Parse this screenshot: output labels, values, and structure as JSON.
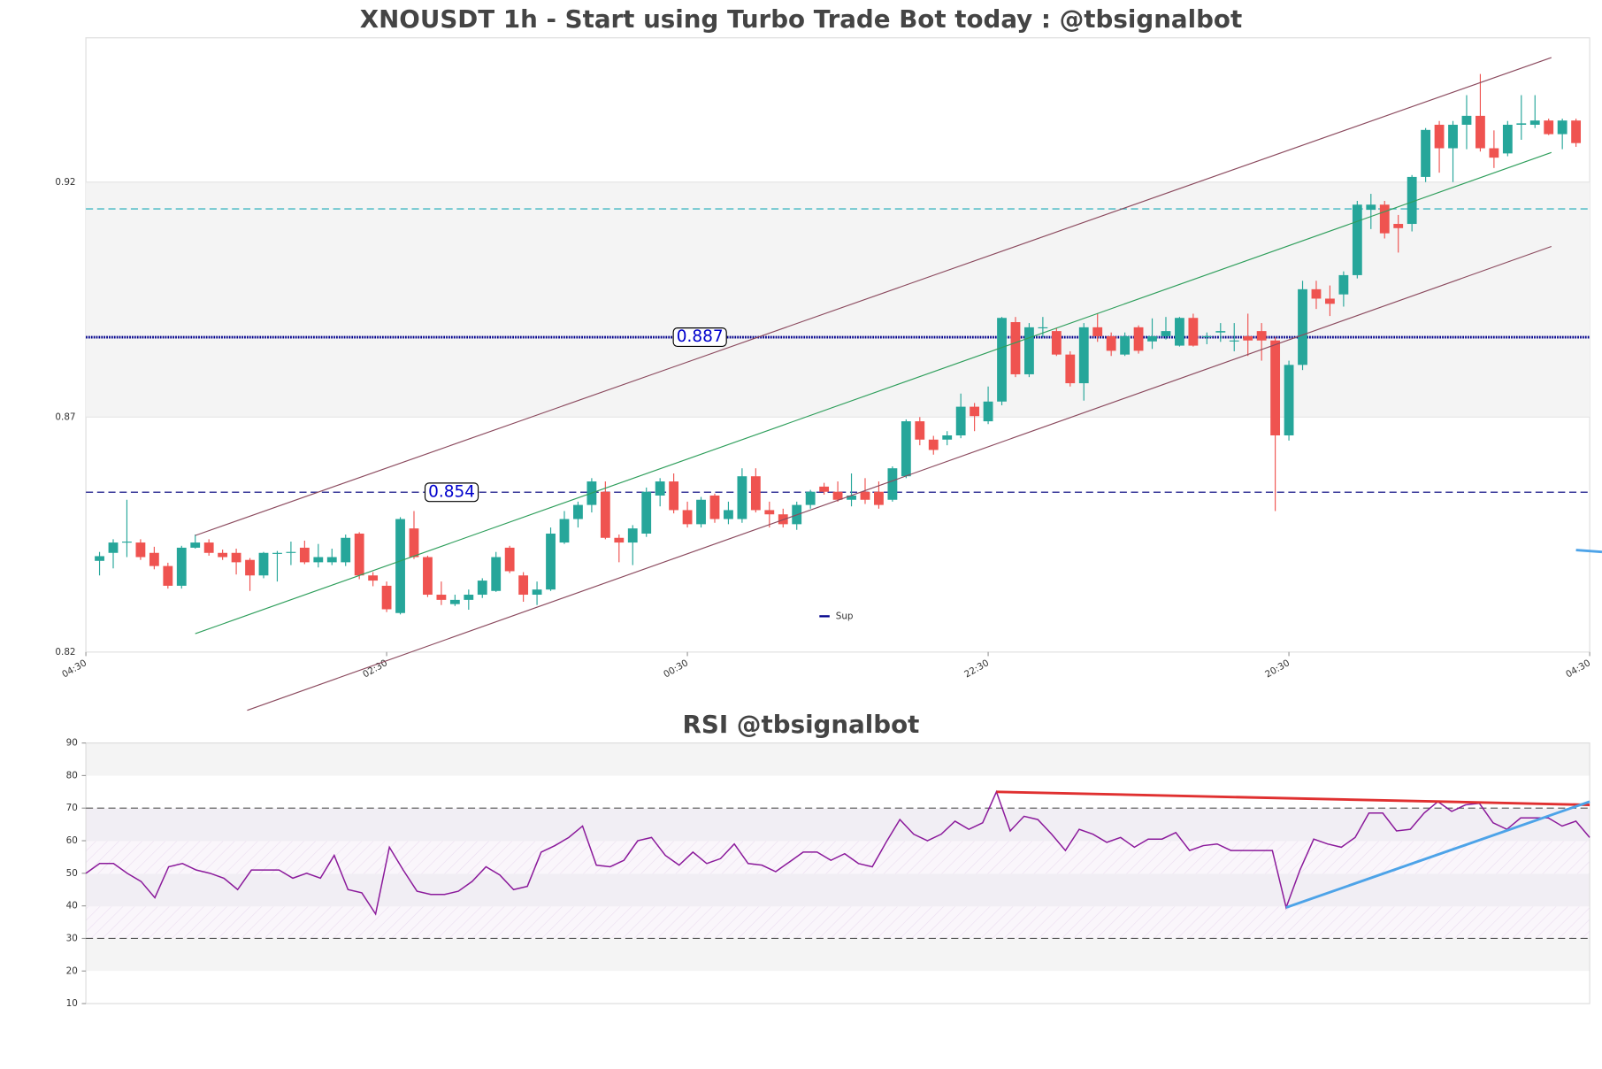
{
  "chart_data": [
    {
      "type": "candlestick",
      "title": "XNOUSDT 1h - Start using Turbo Trade Bot today : @tbsignalbot",
      "up_color": "#26a69a",
      "down_color": "#ef5350",
      "open": [
        0.8394,
        0.8411,
        0.8433,
        0.8433,
        0.8411,
        0.8383,
        0.8341,
        0.8422,
        0.8433,
        0.8411,
        0.8411,
        0.8396,
        0.8363,
        0.8411,
        0.8411,
        0.8422,
        0.8391,
        0.8391,
        0.8391,
        0.8452,
        0.8363,
        0.8341,
        0.8283,
        0.8463,
        0.8402,
        0.8322,
        0.8302,
        0.8311,
        0.8322,
        0.833,
        0.8422,
        0.8363,
        0.8322,
        0.8333,
        0.8433,
        0.8483,
        0.8513,
        0.8541,
        0.8443,
        0.8433,
        0.8452,
        0.8533,
        0.8563,
        0.8502,
        0.8472,
        0.8533,
        0.8483,
        0.8483,
        0.8574,
        0.8502,
        0.8493,
        0.8472,
        0.8513,
        0.8552,
        0.8541,
        0.8524,
        0.8541,
        0.8541,
        0.8524,
        0.8574,
        0.8691,
        0.8652,
        0.8652,
        0.8661,
        0.8722,
        0.8691,
        0.8733,
        0.8902,
        0.8791,
        0.8891,
        0.8883,
        0.8833,
        0.8772,
        0.8891,
        0.8872,
        0.8833,
        0.8891,
        0.8861,
        0.8872,
        0.8852,
        0.8911,
        0.8872,
        0.888,
        0.8861,
        0.8872,
        0.8883,
        0.8863,
        0.8661,
        0.8811,
        0.8972,
        0.8952,
        0.8961,
        0.9002,
        0.9141,
        0.9152,
        0.9111,
        0.9111,
        0.9211,
        0.9322,
        0.9272,
        0.9322,
        0.9341,
        0.9272,
        0.9261,
        0.9322,
        0.9322,
        0.9331,
        0.9302,
        0.9331
      ],
      "high": [
        0.8413,
        0.844,
        0.8524,
        0.844,
        0.8424,
        0.839,
        0.8426,
        0.845,
        0.844,
        0.8418,
        0.842,
        0.84,
        0.8413,
        0.8415,
        0.8435,
        0.8437,
        0.843,
        0.842,
        0.845,
        0.8455,
        0.837,
        0.835,
        0.8487,
        0.85,
        0.8405,
        0.835,
        0.8322,
        0.8333,
        0.8357,
        0.8413,
        0.8426,
        0.837,
        0.835,
        0.8465,
        0.85,
        0.852,
        0.857,
        0.8563,
        0.845,
        0.847,
        0.855,
        0.857,
        0.858,
        0.852,
        0.853,
        0.8537,
        0.852,
        0.8591,
        0.8591,
        0.852,
        0.8505,
        0.852,
        0.8545,
        0.856,
        0.8563,
        0.858,
        0.857,
        0.8563,
        0.8595,
        0.8695,
        0.87,
        0.866,
        0.867,
        0.875,
        0.873,
        0.8765,
        0.8913,
        0.8913,
        0.89,
        0.8913,
        0.889,
        0.884,
        0.89,
        0.892,
        0.888,
        0.888,
        0.8895,
        0.891,
        0.8913,
        0.8913,
        0.892,
        0.888,
        0.89,
        0.89,
        0.892,
        0.89,
        0.887,
        0.882,
        0.899,
        0.899,
        0.898,
        0.901,
        0.916,
        0.9175,
        0.916,
        0.913,
        0.9215,
        0.9315,
        0.933,
        0.933,
        0.9385,
        0.943,
        0.931,
        0.933,
        0.9385,
        0.9385,
        0.9335,
        0.9335,
        0.9335
      ],
      "low": [
        0.8363,
        0.8378,
        0.8402,
        0.8396,
        0.8376,
        0.8335,
        0.8335,
        0.842,
        0.8405,
        0.8396,
        0.8365,
        0.833,
        0.8357,
        0.835,
        0.8385,
        0.8387,
        0.838,
        0.8385,
        0.8383,
        0.8355,
        0.834,
        0.8285,
        0.828,
        0.8398,
        0.8317,
        0.83,
        0.8298,
        0.829,
        0.8315,
        0.8328,
        0.8368,
        0.8307,
        0.83,
        0.833,
        0.843,
        0.8465,
        0.8497,
        0.844,
        0.8391,
        0.8385,
        0.8445,
        0.851,
        0.8495,
        0.8465,
        0.8465,
        0.8475,
        0.8472,
        0.8475,
        0.8497,
        0.8465,
        0.8465,
        0.846,
        0.8505,
        0.8535,
        0.852,
        0.851,
        0.8515,
        0.8505,
        0.852,
        0.857,
        0.864,
        0.862,
        0.864,
        0.8655,
        0.867,
        0.8685,
        0.8725,
        0.8785,
        0.8785,
        0.887,
        0.883,
        0.8765,
        0.8735,
        0.886,
        0.883,
        0.883,
        0.8835,
        0.8845,
        0.8865,
        0.885,
        0.885,
        0.8855,
        0.886,
        0.884,
        0.883,
        0.882,
        0.85,
        0.865,
        0.88,
        0.893,
        0.8915,
        0.8935,
        0.8995,
        0.91,
        0.908,
        0.905,
        0.9095,
        0.92,
        0.922,
        0.92,
        0.927,
        0.9265,
        0.923,
        0.9255,
        0.929,
        0.9315,
        0.93,
        0.927,
        0.9275
      ],
      "close": [
        0.8404,
        0.8433,
        0.8435,
        0.8402,
        0.8383,
        0.8341,
        0.8422,
        0.8433,
        0.8411,
        0.8402,
        0.8391,
        0.8363,
        0.8411,
        0.8411,
        0.8413,
        0.8391,
        0.8402,
        0.8402,
        0.8443,
        0.8363,
        0.8352,
        0.8291,
        0.8483,
        0.8402,
        0.8322,
        0.8311,
        0.8311,
        0.8322,
        0.8352,
        0.8402,
        0.8372,
        0.8322,
        0.8333,
        0.8452,
        0.8483,
        0.8513,
        0.8563,
        0.8443,
        0.8433,
        0.8463,
        0.8541,
        0.8563,
        0.8502,
        0.8472,
        0.8524,
        0.8483,
        0.8502,
        0.8574,
        0.8502,
        0.8493,
        0.8472,
        0.8513,
        0.8541,
        0.8541,
        0.8524,
        0.8533,
        0.8524,
        0.8513,
        0.8591,
        0.8691,
        0.8652,
        0.863,
        0.8661,
        0.8722,
        0.8702,
        0.8733,
        0.8911,
        0.8791,
        0.8891,
        0.8891,
        0.8833,
        0.8772,
        0.8891,
        0.8872,
        0.8841,
        0.8872,
        0.8841,
        0.8872,
        0.8883,
        0.8911,
        0.8852,
        0.8872,
        0.8883,
        0.8863,
        0.8863,
        0.8863,
        0.8661,
        0.8811,
        0.8972,
        0.8952,
        0.8941,
        0.9002,
        0.9152,
        0.9152,
        0.9091,
        0.9102,
        0.9211,
        0.9311,
        0.9272,
        0.9322,
        0.9341,
        0.9272,
        0.9252,
        0.9322,
        0.9325,
        0.9331,
        0.9302,
        0.9331,
        0.9283
      ],
      "xlim": [
        -1,
        109
      ],
      "xticks": [
        {
          "value": -1,
          "label": "04:30"
        },
        {
          "value": 21,
          "label": "02:30"
        },
        {
          "value": 43,
          "label": "00:30"
        },
        {
          "value": 65,
          "label": "22:30"
        },
        {
          "value": 87,
          "label": "20:30"
        },
        {
          "value": 109,
          "label": "04:30"
        }
      ],
      "ylim": [
        0.82,
        0.9507
      ],
      "yticks": [
        0.82,
        0.87,
        0.92
      ],
      "hlines": [
        {
          "value": 0.887,
          "label": "0.887",
          "color": "#00008b",
          "style": "dotted"
        },
        {
          "value": 0.854,
          "label": "0.854",
          "color": "#3a3a9a",
          "style": "dashed"
        },
        {
          "value": 0.9143,
          "color": "#3fb6c2",
          "style": "dashed"
        }
      ],
      "trendlines": [
        {
          "x": [
            7,
            106.2
          ],
          "y": [
            0.8448,
            0.9465
          ],
          "color": "#8b4a5e"
        },
        {
          "x": [
            7,
            106.2
          ],
          "y": [
            0.8239,
            0.9263
          ],
          "color": "#2e9e5b"
        },
        {
          "x": [
            10.8,
            106.2
          ],
          "y": [
            0.8076,
            0.9063
          ],
          "color": "#8b4a5e"
        },
        {
          "x": [
            108,
            109.9
          ],
          "y": [
            0.8417,
            0.8413
          ],
          "color": "#4da3e8"
        }
      ],
      "legend": {
        "name": "Sup",
        "color": "#00008b",
        "position": "lower center"
      }
    },
    {
      "type": "line",
      "title": "RSI @tbsignalbot",
      "color": "#8b1a9b",
      "values": [
        50,
        53,
        53,
        50,
        47.5,
        42.5,
        52,
        53,
        51,
        50,
        48.5,
        45,
        51,
        51,
        51,
        48.5,
        50,
        48.5,
        55.5,
        45,
        44,
        37.5,
        58,
        51,
        44.5,
        43.5,
        43.5,
        44.5,
        47.5,
        52,
        49.5,
        45,
        46,
        56.5,
        58.5,
        61,
        64.5,
        52.5,
        52,
        54,
        60,
        61,
        55.5,
        52.5,
        56.5,
        53,
        54.5,
        59,
        53,
        52.5,
        50.5,
        53.5,
        56.5,
        56.5,
        54,
        56,
        53,
        52,
        59.5,
        66.5,
        62,
        60,
        62,
        66,
        63.5,
        65.5,
        75,
        63,
        67.5,
        66.5,
        62,
        57,
        63.5,
        62,
        59.5,
        61,
        58,
        60.5,
        60.5,
        62.5,
        57,
        58.5,
        59,
        57,
        57,
        57,
        57,
        39.5,
        51,
        60.5,
        59,
        58,
        61,
        68.5,
        68.5,
        63,
        63.5,
        68.5,
        72,
        69,
        71,
        71.5,
        65.5,
        63.5,
        67,
        67,
        67,
        64.5,
        66,
        61
      ],
      "ylim": [
        10,
        90
      ],
      "yticks": [
        10,
        20,
        30,
        40,
        50,
        60,
        70,
        80,
        90
      ],
      "hlines": [
        {
          "value": 70,
          "color": "#555",
          "style": "dashed"
        },
        {
          "value": 30,
          "color": "#555",
          "style": "dashed"
        }
      ],
      "trendlines": [
        {
          "x": [
            66,
            109
          ],
          "y": [
            75,
            71
          ],
          "color": "#e03030"
        },
        {
          "x": [
            87,
            109
          ],
          "y": [
            39.5,
            72
          ],
          "color": "#4da3e8"
        }
      ]
    }
  ]
}
